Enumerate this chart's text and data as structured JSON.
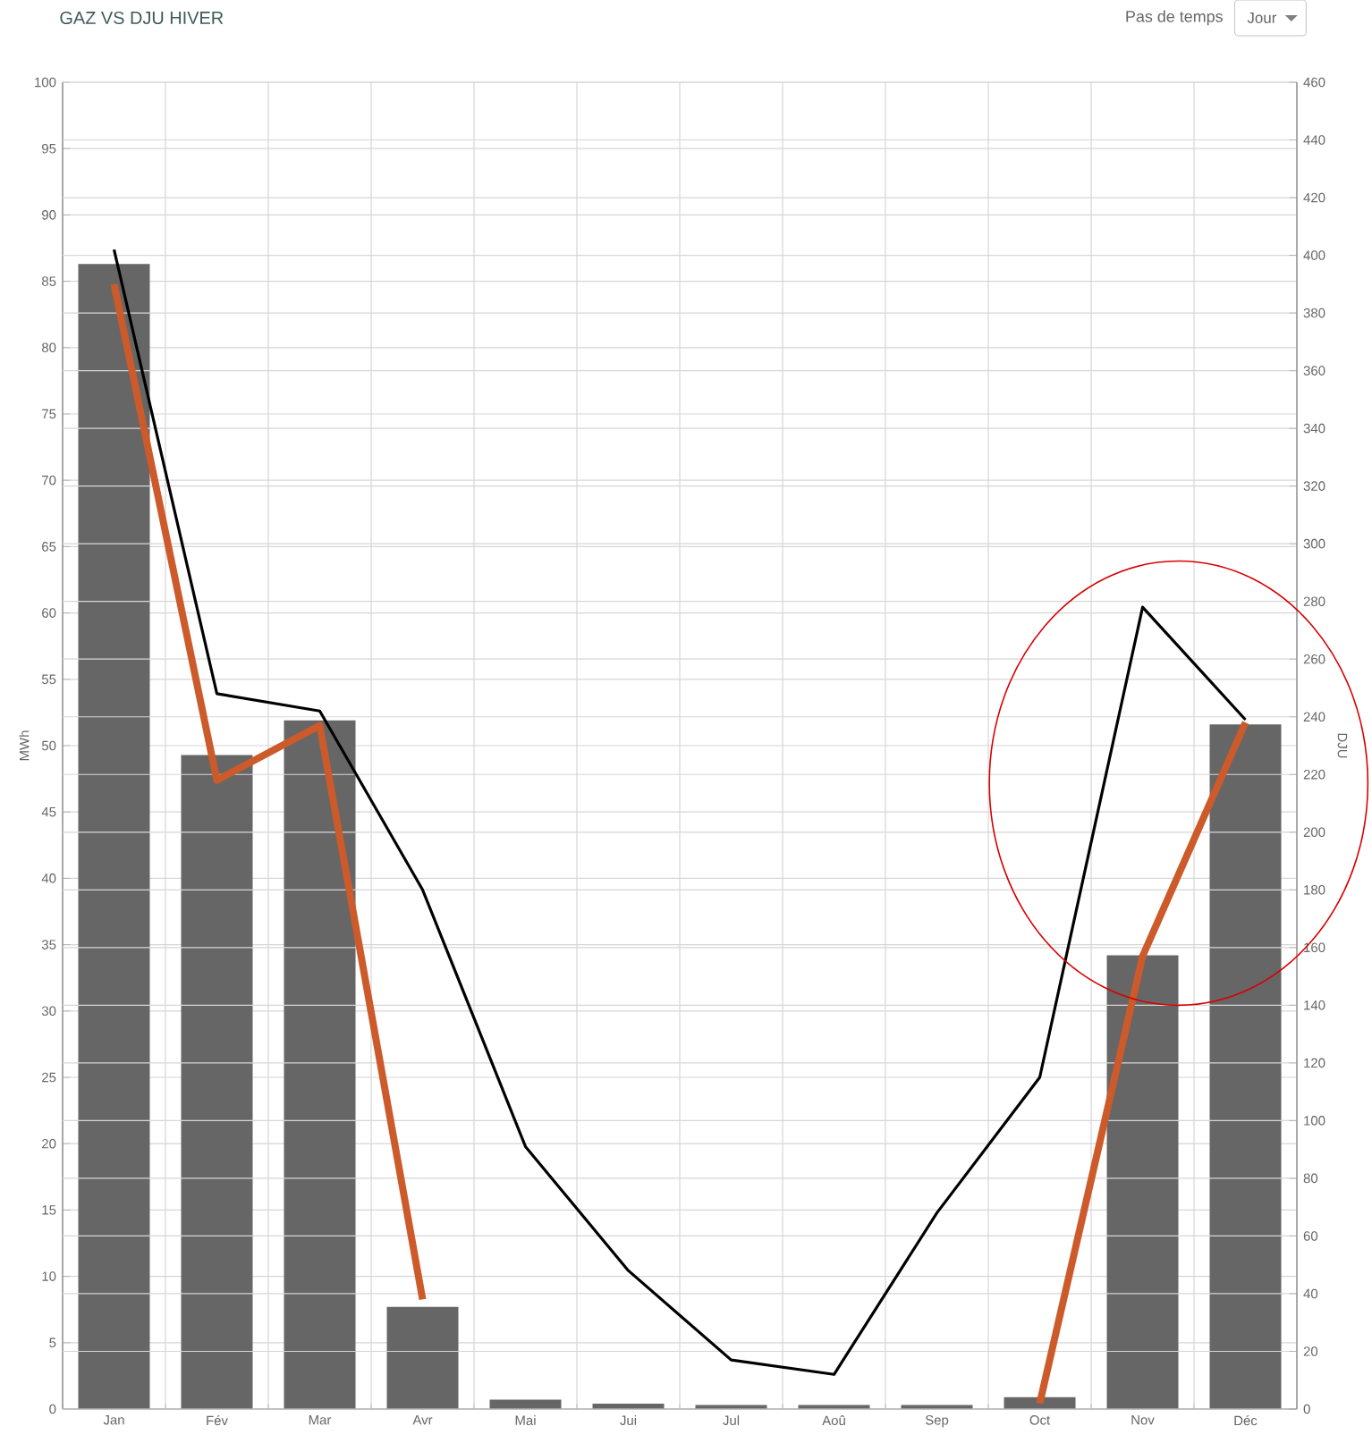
{
  "chart_data": {
    "type": "bar",
    "title": "GAZ VS DJU HIVER",
    "annotations": [
      "Pas de temps",
      "Jour"
    ],
    "ylabel": "MWh",
    "y2label": "DJU",
    "categories": [
      "Jan",
      "Fév",
      "Mar",
      "Avr",
      "Mai",
      "Jui",
      "Jul",
      "Aoû",
      "Sep",
      "Oct",
      "Nov",
      "Déc"
    ],
    "series": [
      {
        "color": "#666666",
        "values": [
          86.3,
          49.3,
          51.9,
          7.7,
          0.7,
          0.4,
          0.3,
          0.3,
          0.3,
          0.9,
          34.2,
          51.6
        ]
      },
      {
        "type": "line",
        "axis": "y2",
        "color": "#000000",
        "values": [
          402,
          248,
          242,
          180,
          91,
          48,
          17,
          12,
          68,
          115,
          278,
          239
        ]
      },
      {
        "type": "line",
        "axis": "y2",
        "color": "#cc5a2a",
        "values": [
          390,
          218,
          237,
          38,
          null,
          null,
          null,
          null,
          null,
          2,
          157,
          238
        ]
      }
    ],
    "ylim": [
      0,
      100
    ],
    "yticks": [
      0,
      5,
      10,
      15,
      20,
      25,
      30,
      35,
      40,
      45,
      50,
      55,
      60,
      65,
      70,
      75,
      80,
      85,
      90,
      95,
      100
    ],
    "y2lim": [
      0,
      460
    ],
    "y2ticks": [
      0,
      20,
      40,
      60,
      80,
      100,
      120,
      140,
      160,
      180,
      200,
      220,
      240,
      260,
      280,
      300,
      320,
      340,
      360,
      380,
      400,
      420,
      440,
      460
    ],
    "grid": true,
    "marker": "none"
  }
}
